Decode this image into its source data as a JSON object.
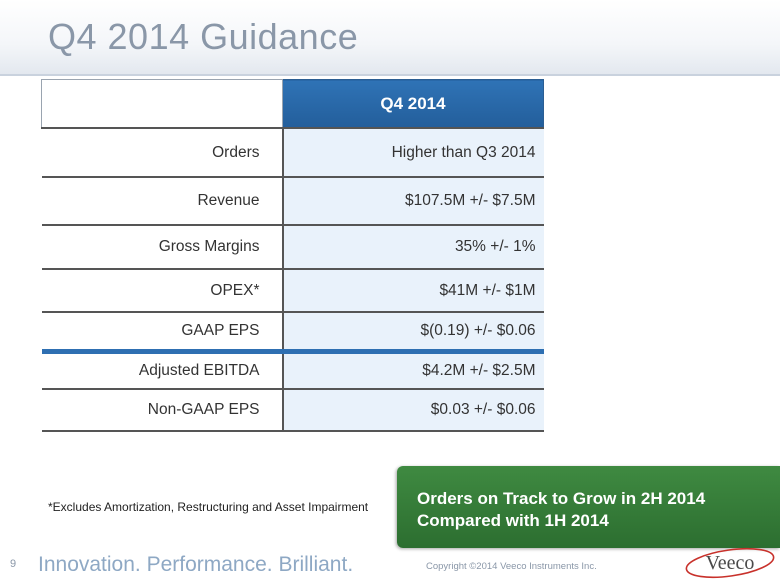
{
  "slide": {
    "title": "Q4 2014 Guidance",
    "page_number": "9",
    "footnote": "*Excludes Amortization, Restructuring and Asset Impairment",
    "callout_line1": "Orders on Track to Grow in 2H 2014",
    "callout_line2": "Compared with 1H 2014",
    "tagline": "Innovation. Performance. Brilliant.",
    "copyright": "Copyright ©2014 Veeco Instruments Inc.",
    "logo_text": "Veeco"
  },
  "table": {
    "header": "Q4 2014",
    "rows": [
      {
        "label": "Orders",
        "value": "Higher than Q3 2014"
      },
      {
        "label": "Revenue",
        "value": "$107.5M +/- $7.5M"
      },
      {
        "label": "Gross Margins",
        "value": "35% +/- 1%"
      },
      {
        "label": "OPEX*",
        "value": "$41M +/- $1M"
      },
      {
        "label": "GAAP EPS",
        "value": "$(0.19) +/- $0.06"
      },
      {
        "label": "Adjusted EBITDA",
        "value": "$4.2M +/- $2.5M"
      },
      {
        "label": "Non-GAAP EPS",
        "value": "$0.03 +/- $0.06"
      }
    ]
  },
  "colors": {
    "header_blue": "#2f73b6",
    "callout_green": "#3f8a41",
    "title_gray": "#8a97a8",
    "logo_red": "#c8312b"
  }
}
